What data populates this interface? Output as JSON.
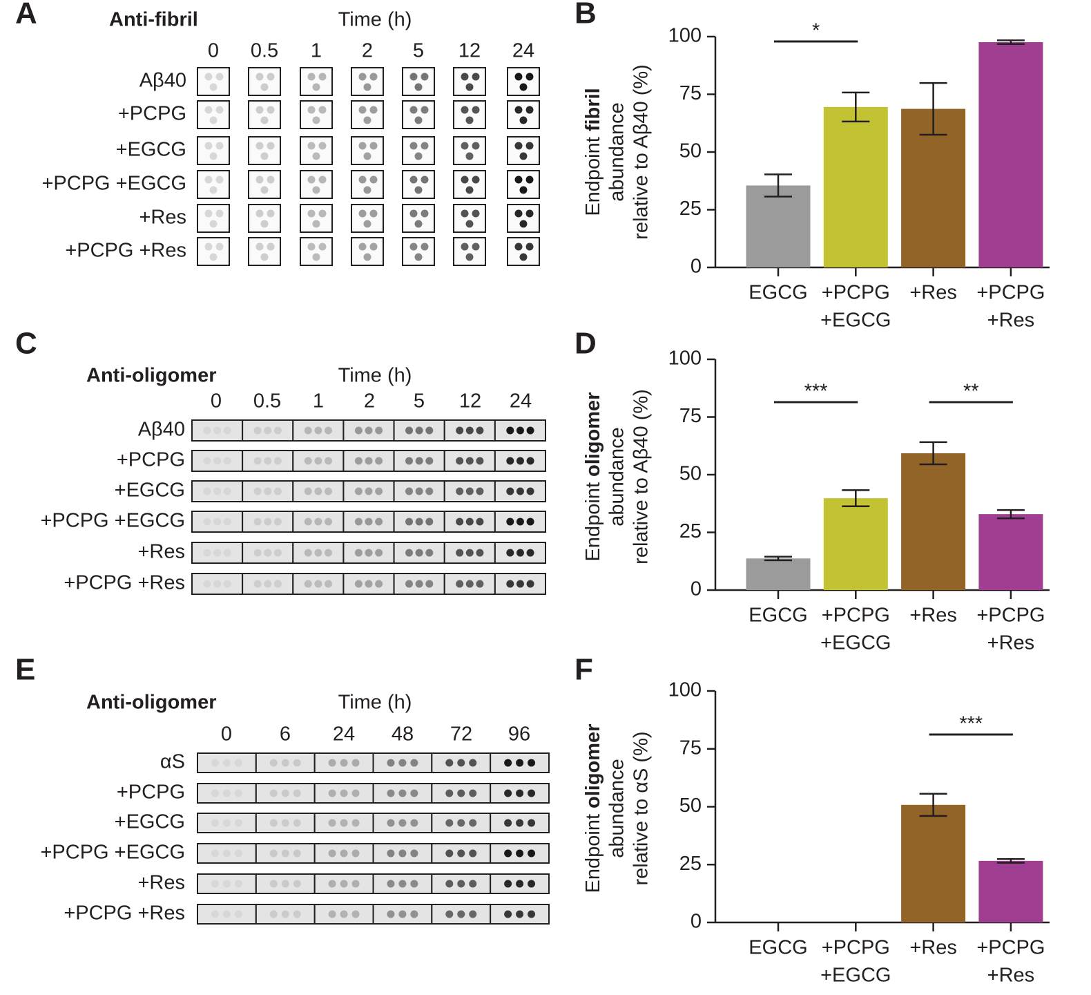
{
  "chart_data": [
    {
      "type": "bar",
      "panel": "B",
      "y_label": [
        "Endpoint",
        "fibril",
        "abundance",
        "relative to Aβ40 (%)"
      ],
      "categories": [
        [
          "EGCG"
        ],
        [
          "+PCPG",
          "+EGCG"
        ],
        [
          "+Res"
        ],
        [
          "+PCPG",
          "+Res"
        ]
      ],
      "values": [
        35.5,
        69.5,
        68.7,
        97.6
      ],
      "errors": [
        4.8,
        6.3,
        11.2,
        0.8
      ],
      "colors": [
        "#9b9b9b",
        "#c3c232",
        "#936427",
        "#a03f92"
      ],
      "ylim": [
        0,
        100
      ],
      "yticks": [
        0,
        25,
        50,
        75,
        100
      ],
      "significance": [
        {
          "between": [
            0,
            1
          ],
          "label": "*"
        }
      ]
    },
    {
      "type": "bar",
      "panel": "D",
      "y_label": [
        "Endpoint",
        "oligomer",
        "abundance",
        "relative to Aβ40 (%)"
      ],
      "categories": [
        [
          "EGCG"
        ],
        [
          "+PCPG",
          "+EGCG"
        ],
        [
          "+Res"
        ],
        [
          "+PCPG",
          "+Res"
        ]
      ],
      "values": [
        13.7,
        39.8,
        59.3,
        32.9
      ],
      "errors": [
        0.8,
        3.5,
        4.8,
        1.8
      ],
      "colors": [
        "#9b9b9b",
        "#c3c232",
        "#936427",
        "#a03f92"
      ],
      "ylim": [
        0,
        100
      ],
      "yticks": [
        0,
        25,
        50,
        75,
        100
      ],
      "significance": [
        {
          "between": [
            0,
            1
          ],
          "label": "***"
        },
        {
          "between": [
            2,
            3
          ],
          "label": "**"
        }
      ]
    },
    {
      "type": "bar",
      "panel": "F",
      "y_label": [
        "Endpoint",
        "oligomer",
        "abundance",
        "relative to αS (%)"
      ],
      "categories": [
        [
          "EGCG"
        ],
        [
          "+PCPG",
          "+EGCG"
        ],
        [
          "+Res"
        ],
        [
          "+PCPG",
          "+Res"
        ]
      ],
      "values": [
        null,
        null,
        50.8,
        26.6
      ],
      "errors": [
        null,
        null,
        4.8,
        0.8
      ],
      "colors": [
        "#9b9b9b",
        "#c3c232",
        "#936427",
        "#a03f92"
      ],
      "ylim": [
        0,
        100
      ],
      "yticks": [
        0,
        25,
        50,
        75,
        100
      ],
      "significance": [
        {
          "between": [
            2,
            3
          ],
          "label": "***"
        }
      ]
    }
  ],
  "blots": [
    {
      "panel": "A",
      "title": "Anti-fibril",
      "time_label": "Time (h)",
      "times": [
        "0",
        "0.5",
        "1",
        "2",
        "5",
        "12",
        "24"
      ],
      "rows": [
        "Aβ40",
        "+PCPG",
        "+EGCG",
        "+PCPG +EGCG",
        "+Res",
        "+PCPG +Res"
      ]
    },
    {
      "panel": "C",
      "title": "Anti-oligomer",
      "time_label": "Time (h)",
      "times": [
        "0",
        "0.5",
        "1",
        "2",
        "5",
        "12",
        "24"
      ],
      "rows": [
        "Aβ40",
        "+PCPG",
        "+EGCG",
        "+PCPG +EGCG",
        "+Res",
        "+PCPG +Res"
      ]
    },
    {
      "panel": "E",
      "title": "Anti-oligomer",
      "time_label": "Time (h)",
      "times": [
        "0",
        "6",
        "24",
        "48",
        "72",
        "96"
      ],
      "rows": [
        "αS",
        "+PCPG",
        "+EGCG",
        "+PCPG +EGCG",
        "+Res",
        "+PCPG +Res"
      ]
    }
  ]
}
